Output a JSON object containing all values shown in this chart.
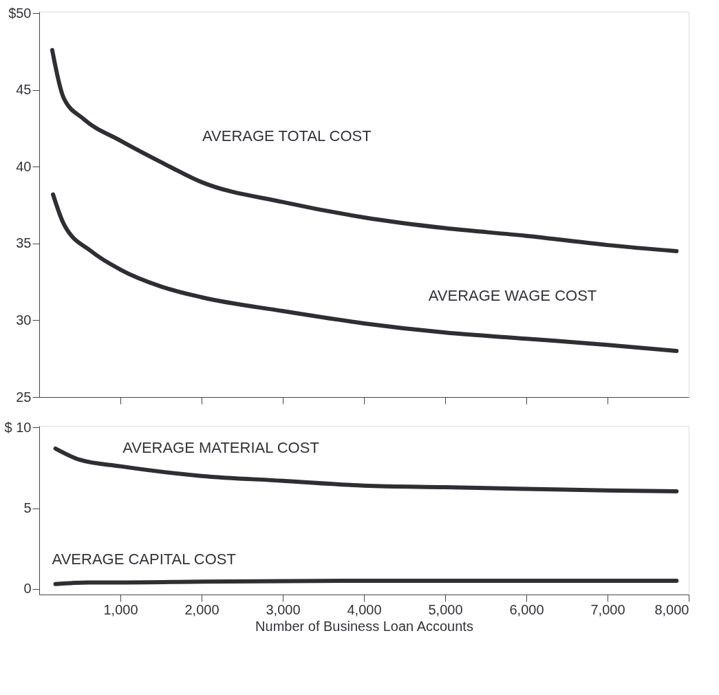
{
  "chart_data": [
    {
      "type": "line",
      "xlim": [
        0,
        8000
      ],
      "ylim": [
        25,
        50.1
      ],
      "xticks": [
        {
          "value": 1000,
          "label": null
        },
        {
          "value": 2000,
          "label": null
        },
        {
          "value": 3000,
          "label": null
        },
        {
          "value": 4000,
          "label": null
        },
        {
          "value": 5000,
          "label": null
        },
        {
          "value": 6000,
          "label": null
        },
        {
          "value": 7000,
          "label": null
        }
      ],
      "yticks": [
        25,
        30,
        35,
        40,
        45,
        {
          "value": 50,
          "label": "$50"
        }
      ],
      "tick_labels": "y",
      "grid": false,
      "line_style": "solid",
      "marker": "none",
      "series": [
        {
          "name": "AVERAGE TOTAL COST",
          "color": "#2e2e33",
          "x": [
            160,
            300,
            550,
            1000,
            1500,
            2000,
            3000,
            4000,
            5000,
            6000,
            7000,
            7850
          ],
          "values": [
            47.6,
            44.5,
            43.1,
            41.7,
            40.3,
            39.0,
            37.7,
            36.7,
            36.0,
            35.5,
            34.9,
            34.5
          ]
        },
        {
          "name": "AVERAGE WAGE COST",
          "color": "#2e2e33",
          "x": [
            170,
            300,
            640,
            1000,
            1500,
            2000,
            3000,
            4000,
            5000,
            6000,
            7000,
            7850
          ],
          "values": [
            38.2,
            36.3,
            34.5,
            33.3,
            32.2,
            31.5,
            30.6,
            29.8,
            29.2,
            28.8,
            28.4,
            28.0
          ]
        }
      ]
    },
    {
      "type": "line",
      "xlim": [
        0,
        8000
      ],
      "ylim": [
        -0.35,
        10.1
      ],
      "xlabel": "Number of Business Loan Accounts",
      "xticks": [
        {
          "value": 1000,
          "label": "1,000"
        },
        {
          "value": 2000,
          "label": "2,000"
        },
        {
          "value": 3000,
          "label": "3,000"
        },
        {
          "value": 4000,
          "label": "4,000"
        },
        {
          "value": 5000,
          "label": "5,000"
        },
        {
          "value": 6000,
          "label": "6,000"
        },
        {
          "value": 7000,
          "label": "7,000"
        },
        {
          "value": 8000,
          "label": "8,000"
        }
      ],
      "yticks": [
        0,
        5,
        {
          "value": 10,
          "label": "$ 10"
        }
      ],
      "grid": false,
      "line_style": "solid",
      "marker": "none",
      "series": [
        {
          "name": "AVERAGE MATERIAL COST",
          "color": "#2e2e33",
          "x": [
            200,
            500,
            1000,
            2000,
            3000,
            4000,
            5000,
            6000,
            7000,
            7850
          ],
          "values": [
            8.7,
            8.0,
            7.6,
            7.0,
            6.7,
            6.4,
            6.3,
            6.2,
            6.1,
            6.05
          ]
        },
        {
          "name": "AVERAGE CAPITAL COST",
          "color": "#2e2e33",
          "x": [
            200,
            600,
            1000,
            2000,
            4000,
            6000,
            7850
          ],
          "values": [
            0.3,
            0.4,
            0.4,
            0.45,
            0.5,
            0.5,
            0.5
          ]
        }
      ]
    }
  ]
}
